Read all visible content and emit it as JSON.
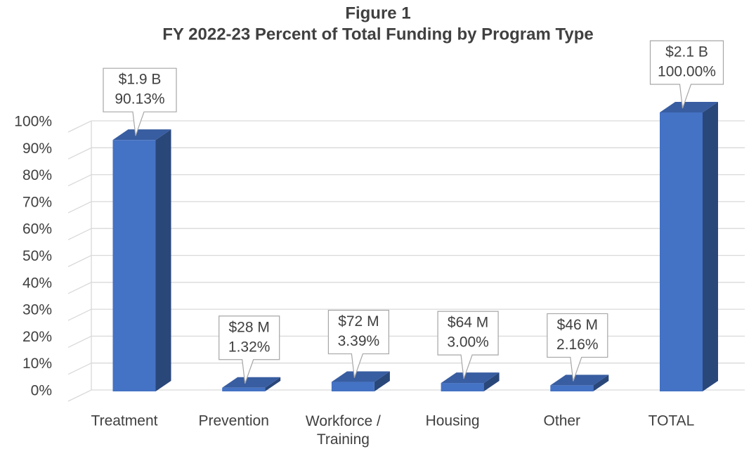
{
  "chart_data": {
    "type": "bar3d",
    "title": "Figure 1",
    "subtitle": "FY 2022-23 Percent of Total Funding by Program Type",
    "categories": [
      "Treatment",
      "Prevention",
      "Workforce / Training",
      "Housing",
      "Other",
      "TOTAL"
    ],
    "values": [
      90.13,
      1.32,
      3.39,
      3.0,
      2.16,
      100.0
    ],
    "value_labels": [
      "90.13%",
      "1.32%",
      "3.39%",
      "3.00%",
      "2.16%",
      "100.00%"
    ],
    "amount_labels": [
      "$1.9 B",
      "$28 M",
      "$72 M",
      "$64 M",
      "$46 M",
      "$2.1 B"
    ],
    "color": "#4472c4",
    "ylim": [
      0,
      100
    ],
    "yticks": [
      {
        "value": 0,
        "label": "0%"
      },
      {
        "value": 10,
        "label": "10%"
      },
      {
        "value": 20,
        "label": "20%"
      },
      {
        "value": 30,
        "label": "30%"
      },
      {
        "value": 40,
        "label": "40%"
      },
      {
        "value": 50,
        "label": "50%"
      },
      {
        "value": 60,
        "label": "60%"
      },
      {
        "value": 70,
        "label": "70%"
      },
      {
        "value": 80,
        "label": "80%"
      },
      {
        "value": 90,
        "label": "90%"
      },
      {
        "value": 100,
        "label": "100%"
      }
    ],
    "grid": true
  }
}
